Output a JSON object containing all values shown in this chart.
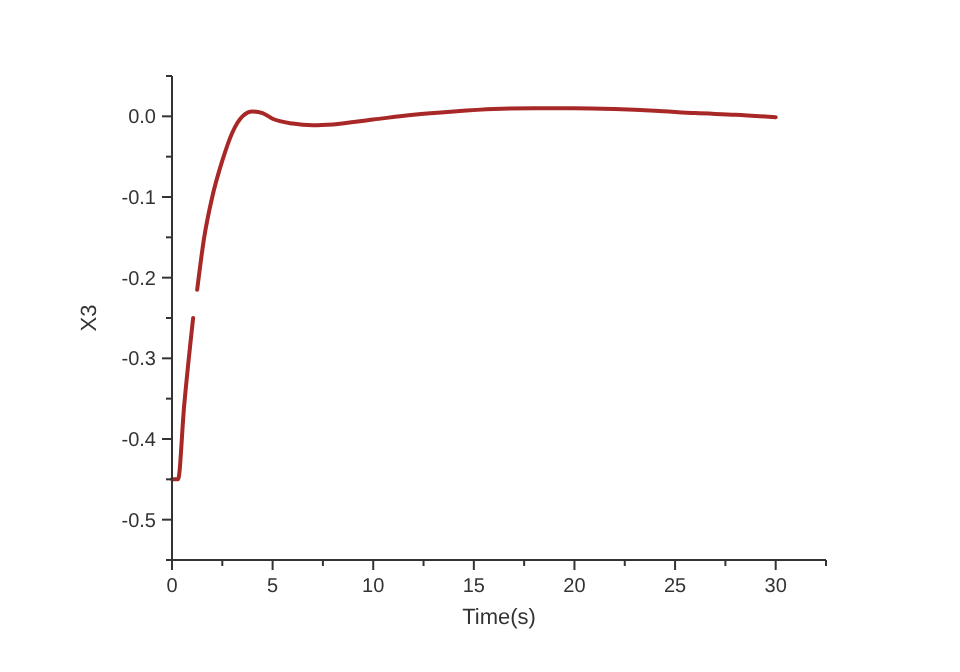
{
  "chart_data": {
    "type": "line",
    "xlabel": "Time(s)",
    "ylabel": "X3",
    "x": [
      0,
      0.3,
      0.6,
      1.05,
      1.15,
      1.25,
      1.6,
      2,
      2.5,
      3,
      3.5,
      4,
      4.5,
      5,
      6,
      7,
      8,
      10,
      12,
      14,
      16,
      18,
      20,
      22,
      24,
      26,
      28,
      30
    ],
    "series": [
      {
        "color": "#a82828",
        "values": [
          -0.45,
          -0.45,
          -0.36,
          -0.25,
          null,
          -0.215,
          -0.15,
          -0.1,
          -0.055,
          -0.02,
          0.0,
          0.006,
          0.004,
          -0.003,
          -0.009,
          -0.011,
          -0.01,
          -0.004,
          0.002,
          0.006,
          0.009,
          0.01,
          0.01,
          0.009,
          0.007,
          0.004,
          0.002,
          -0.001
        ]
      }
    ],
    "xlim": [
      0,
      32.5
    ],
    "xticks": [
      0,
      {
        "value": 2.5,
        "label": null
      },
      5,
      {
        "value": 7.5,
        "label": null
      },
      10,
      {
        "value": 12.5,
        "label": null
      },
      15,
      {
        "value": 17.5,
        "label": null
      },
      20,
      {
        "value": 22.5,
        "label": null
      },
      25,
      {
        "value": 27.5,
        "label": null
      },
      30,
      {
        "value": 32.5,
        "label": null
      }
    ],
    "ylim": [
      -0.55,
      0.05
    ],
    "yticks": [
      {
        "value": -0.55,
        "label": null
      },
      -0.5,
      {
        "value": -0.45,
        "label": null
      },
      -0.4,
      {
        "value": -0.35,
        "label": null
      },
      -0.3,
      {
        "value": -0.25,
        "label": null
      },
      -0.2,
      {
        "value": -0.15,
        "label": null
      },
      -0.1,
      {
        "value": -0.05,
        "label": null
      },
      {
        "value": 0,
        "label": "0.0"
      },
      {
        "value": 0.05,
        "label": null
      }
    ],
    "grid": false,
    "marker": "none",
    "line_style": "solid"
  }
}
